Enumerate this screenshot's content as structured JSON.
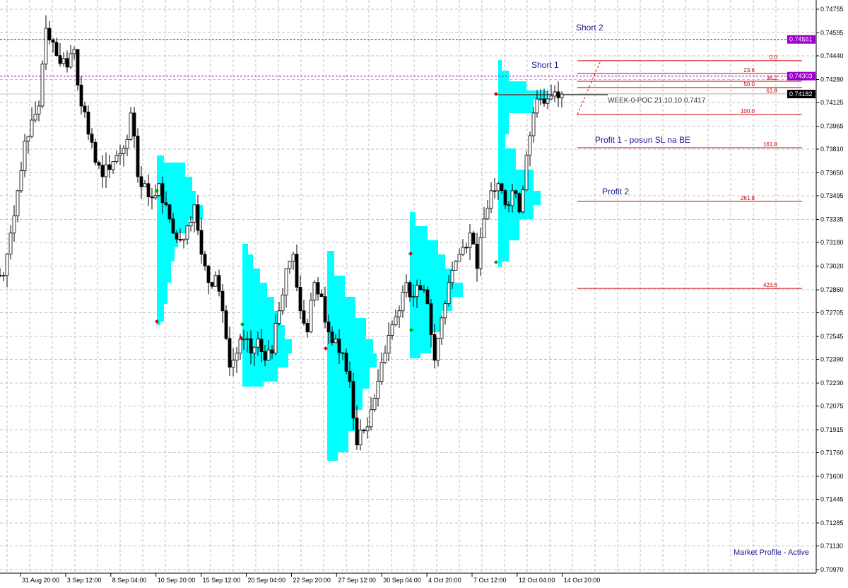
{
  "chart_data": {
    "type": "candlestick",
    "title": "",
    "grid": true,
    "y_axis": {
      "position": "right",
      "range": [
        0.7097,
        0.74755
      ],
      "tick_labels": [
        "0.74755",
        "0.74595",
        "0.74440",
        "0.74280",
        "0.74125",
        "0.73965",
        "0.73810",
        "0.73650",
        "0.73495",
        "0.73335",
        "0.73180",
        "0.73020",
        "0.72860",
        "0.72705",
        "0.72545",
        "0.72390",
        "0.72230",
        "0.72075",
        "0.71915",
        "0.71760",
        "0.71600",
        "0.71445",
        "0.71285",
        "0.71130",
        "0.70970"
      ]
    },
    "x_axis": {
      "tick_labels": [
        "4:00",
        "31 Aug 20:00",
        "3 Sep 12:00",
        "8 Sep 04:00",
        "10 Sep 20:00",
        "15 Sep 12:00",
        "20 Sep 04:00",
        "22 Sep 20:00",
        "27 Sep 12:00",
        "30 Sep 04:00",
        "4 Oct 20:00",
        "7 Oct 12:00",
        "12 Oct 04:00",
        "14 Oct 20:00"
      ]
    },
    "close": [
      0.72957,
      0.73243,
      0.73529,
      0.73863,
      0.74006,
      0.74101,
      0.74626,
      0.74531,
      0.74388,
      0.74364,
      0.74483,
      0.74101,
      0.73911,
      0.7372,
      0.73624,
      0.73672,
      0.73768,
      0.73815,
      0.74054,
      0.73624,
      0.73577,
      0.73481,
      0.73577,
      0.73434,
      0.73243,
      0.73195,
      0.73291,
      0.73434,
      0.731,
      0.72909,
      0.72957,
      0.72718,
      0.72337,
      0.72432,
      0.72527,
      0.72432,
      0.72527,
      0.72384,
      0.72432,
      0.72718,
      0.73004,
      0.731,
      0.72718,
      0.72575,
      0.72909,
      0.72814,
      0.72575,
      0.72527,
      0.72432,
      0.72241,
      0.71812,
      0.71907,
      0.7205,
      0.72241,
      0.72432,
      0.72623,
      0.72718,
      0.72909,
      0.72814,
      0.72861,
      0.72766,
      0.72384,
      0.7267,
      0.72909,
      0.73052,
      0.73147,
      0.73243,
      0.73004,
      0.73338,
      0.73529,
      0.73577,
      0.73434,
      0.73529,
      0.73386,
      0.73768,
      0.74054,
      0.74149,
      0.74149,
      0.74197,
      0.74182
    ],
    "price_lines": [
      {
        "label": "0.74551",
        "value": 0.74551,
        "color": "#9900cc",
        "style": "dashed"
      },
      {
        "label": "0.74303",
        "value": 0.74303,
        "color": "#9900cc",
        "style": "dashed"
      },
      {
        "label": "0.74182",
        "value": 0.74182,
        "color": "#000000",
        "style": "current"
      }
    ],
    "fibonacci": {
      "level_0_price": 0.74407,
      "level_100_price": 0.74044,
      "levels": [
        "0.0",
        "23.6",
        "38.2",
        "50.0",
        "61.8",
        "100.0",
        "161.8",
        "261.8",
        "423.6"
      ],
      "color": "#cc0000"
    },
    "annotations": {
      "short2": "Short 2",
      "short1": "Short 1",
      "profit1": "Profit 1 - posun SL na BE",
      "profit2": "Profit 2",
      "poc": "WEEK-0-POC 21.10.10 0.7417",
      "status": "Market Profile - Active"
    },
    "colors": {
      "profile": "#00ffff",
      "bull": "#ffffff",
      "bear": "#000000",
      "grid": "#c0c0c0",
      "text": "#1a1a8c"
    }
  }
}
